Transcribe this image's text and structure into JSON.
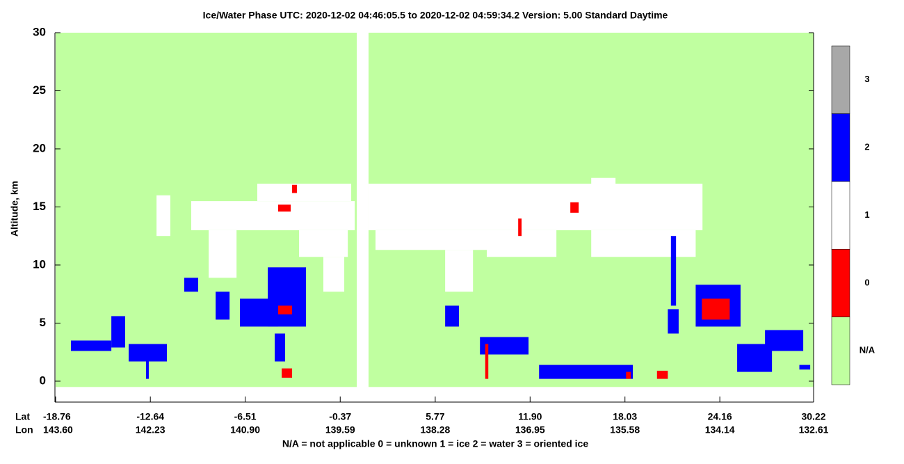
{
  "chart_data": {
    "type": "phase-curtain",
    "title": "Ice/Water Phase    UTC:  2020-12-02   04:46:05.5  to  2020-12-02   04:59:34.2    Version: 5.00  Standard Daytime",
    "y_label": "Altitude, km",
    "x_row_labels": [
      "Lat",
      "Lon"
    ],
    "footnote": "N/A = not applicable     0 = unknown     1 = ice     2 = water     3 = oriented ice",
    "xlim": [
      -18.76,
      30.22
    ],
    "ylim": [
      -1.8,
      30
    ],
    "yticks": [
      0,
      5,
      10,
      15,
      20,
      25,
      30
    ],
    "xticks": [
      -18.76,
      -12.64,
      -6.51,
      -0.37,
      5.77,
      {
        "value": 11.9,
        "label": "11.90"
      },
      18.03,
      24.16,
      30.22
    ],
    "lon_labels": [
      "143.60",
      "142.23",
      "140.90",
      "139.59",
      "138.28",
      "136.95",
      "135.58",
      "134.14",
      "132.61"
    ],
    "legend": {
      "labels": [
        "N/A",
        "0",
        "1",
        "2",
        "3"
      ],
      "colors": [
        "#c0ffa0",
        "#ff0000",
        "#ffffff",
        "#0000ff",
        "#a8a8a8"
      ]
    },
    "patches": [
      {
        "lat": [
          -18.76,
          0.7
        ],
        "alt": [
          -0.5,
          30
        ],
        "phase": 0
      },
      {
        "lat": [
          1.46,
          30.22
        ],
        "alt": [
          -0.5,
          30
        ],
        "phase": 0
      },
      {
        "lat": [
          -12.24,
          -11.35
        ],
        "alt": [
          12.5,
          16.0
        ],
        "phase": 2
      },
      {
        "lat": [
          -10.0,
          0.57
        ],
        "alt": [
          13,
          15.5
        ],
        "phase": 2
      },
      {
        "lat": [
          -5.73,
          0.34
        ],
        "alt": [
          15.5,
          17
        ],
        "phase": 2
      },
      {
        "lat": [
          -8.87,
          -7.07
        ],
        "alt": [
          8.9,
          13
        ],
        "phase": 2
      },
      {
        "lat": [
          -3.03,
          0.12
        ],
        "alt": [
          10.7,
          13
        ],
        "phase": 2
      },
      {
        "lat": [
          -1.46,
          -0.11
        ],
        "alt": [
          7.7,
          10.7
        ],
        "phase": 2
      },
      {
        "lat": [
          1.46,
          23.04
        ],
        "alt": [
          13,
          17
        ],
        "phase": 2
      },
      {
        "lat": [
          1.91,
          9.1
        ],
        "alt": [
          11.3,
          13
        ],
        "phase": 2
      },
      {
        "lat": [
          6.41,
          8.21
        ],
        "alt": [
          7.7,
          11.3
        ],
        "phase": 2
      },
      {
        "lat": [
          9.1,
          13.6
        ],
        "alt": [
          10.7,
          13
        ],
        "phase": 2
      },
      {
        "lat": [
          15.85,
          22.6
        ],
        "alt": [
          10.7,
          13
        ],
        "phase": 2
      },
      {
        "lat": [
          15.85,
          17.42
        ],
        "alt": [
          15.5,
          17.5
        ],
        "phase": 2
      },
      {
        "lat": [
          -4.38,
          -3.57
        ],
        "alt": [
          14.6,
          15.2
        ],
        "phase": 1
      },
      {
        "lat": [
          -3.48,
          -3.17
        ],
        "alt": [
          16.2,
          16.9
        ],
        "phase": 1
      },
      {
        "lat": [
          14.5,
          15.04
        ],
        "alt": [
          14.5,
          15.4
        ],
        "phase": 1
      },
      {
        "lat": [
          11.13,
          11.35
        ],
        "alt": [
          12.5,
          14
        ],
        "phase": 1
      },
      {
        "lat": [
          -17.77,
          -15.16
        ],
        "alt": [
          2.6,
          3.5
        ],
        "phase": 3
      },
      {
        "lat": [
          -15.16,
          -14.27
        ],
        "alt": [
          2.9,
          5.6
        ],
        "phase": 3
      },
      {
        "lat": [
          -14.04,
          -11.57
        ],
        "alt": [
          1.7,
          3.2
        ],
        "phase": 3
      },
      {
        "lat": [
          -12.92,
          -12.74
        ],
        "alt": [
          0.2,
          2.9
        ],
        "phase": 3
      },
      {
        "lat": [
          -10.45,
          -9.55
        ],
        "alt": [
          7.7,
          8.9
        ],
        "phase": 3
      },
      {
        "lat": [
          -8.42,
          -7.52
        ],
        "alt": [
          5.3,
          7.7
        ],
        "phase": 3
      },
      {
        "lat": [
          -6.85,
          -4.38
        ],
        "alt": [
          4.7,
          7.1
        ],
        "phase": 3
      },
      {
        "lat": [
          -5.05,
          -2.58
        ],
        "alt": [
          4.7,
          9.8
        ],
        "phase": 3
      },
      {
        "lat": [
          -4.6,
          -3.93
        ],
        "alt": [
          1.7,
          4.1
        ],
        "phase": 3
      },
      {
        "lat": [
          -4.15,
          -3.48
        ],
        "alt": [
          0.3,
          1.1
        ],
        "phase": 1
      },
      {
        "lat": [
          -4.38,
          -3.48
        ],
        "alt": [
          5.75,
          6.5
        ],
        "phase": 1
      },
      {
        "lat": [
          6.41,
          7.3
        ],
        "alt": [
          4.7,
          6.5
        ],
        "phase": 3
      },
      {
        "lat": [
          8.66,
          11.8
        ],
        "alt": [
          2.3,
          3.8
        ],
        "phase": 3
      },
      {
        "lat": [
          9.0,
          9.2
        ],
        "alt": [
          0.2,
          3.2
        ],
        "phase": 1
      },
      {
        "lat": [
          12.48,
          18.54
        ],
        "alt": [
          0.2,
          1.4
        ],
        "phase": 3
      },
      {
        "lat": [
          18.1,
          18.4
        ],
        "alt": [
          0.2,
          0.8
        ],
        "phase": 1
      },
      {
        "lat": [
          20.1,
          20.8
        ],
        "alt": [
          0.2,
          0.9
        ],
        "phase": 1
      },
      {
        "lat": [
          20.8,
          21.5
        ],
        "alt": [
          4.1,
          6.2
        ],
        "phase": 3
      },
      {
        "lat": [
          21.0,
          21.33
        ],
        "alt": [
          6.5,
          12.5
        ],
        "phase": 3
      },
      {
        "lat": [
          22.6,
          25.5
        ],
        "alt": [
          4.7,
          8.3
        ],
        "phase": 3
      },
      {
        "lat": [
          23.0,
          24.8
        ],
        "alt": [
          5.3,
          7.1
        ],
        "phase": 1
      },
      {
        "lat": [
          25.28,
          27.53
        ],
        "alt": [
          0.8,
          3.2
        ],
        "phase": 3
      },
      {
        "lat": [
          27.08,
          29.55
        ],
        "alt": [
          2.6,
          4.4
        ],
        "phase": 3
      },
      {
        "lat": [
          29.3,
          30.0
        ],
        "alt": [
          1.0,
          1.4
        ],
        "phase": 3
      }
    ]
  }
}
